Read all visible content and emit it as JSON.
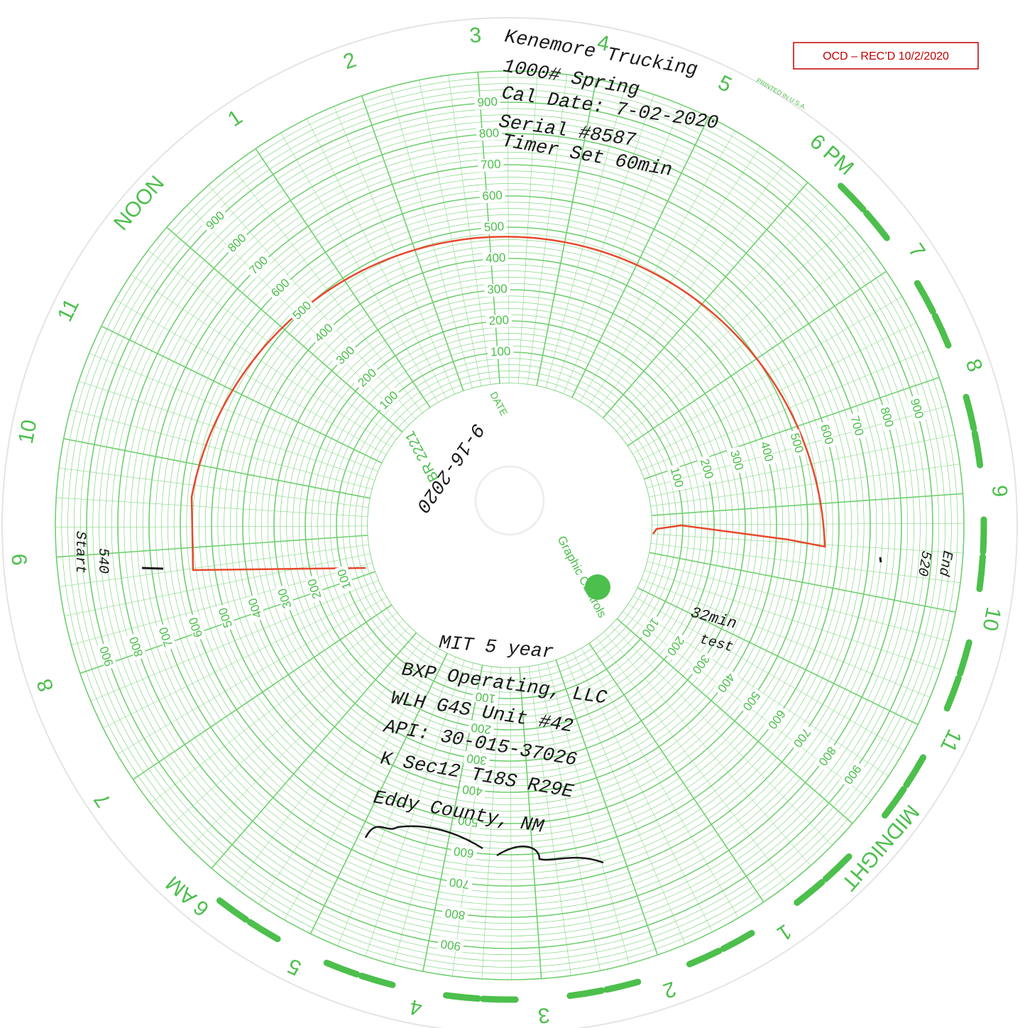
{
  "stamp": "OCD – REC’D 10/2/2020",
  "chart_paper": {
    "hour_labels": [
      "MIDNIGHT",
      "1",
      "2",
      "3",
      "4",
      "5",
      "6 AM",
      "7",
      "8",
      "9",
      "10",
      "11",
      "NOON",
      "1",
      "2",
      "3",
      "4",
      "5",
      "6 PM",
      "7",
      "8",
      "9",
      "10",
      "11"
    ],
    "scale_labels": [
      "100",
      "200",
      "300",
      "400",
      "500",
      "600",
      "700",
      "800",
      "900"
    ],
    "printed_in": "PRINTED IN U.S.A.",
    "chart_number": "BR 2221",
    "date_label": "DATE",
    "brand": "Graphic Controls"
  },
  "header_notes": [
    "Kenemore Trucking",
    "1000# Spring",
    "Cal Date: 7-02-2020",
    "Serial #8587",
    "Timer Set 60min"
  ],
  "date_entry": "9-16-2020",
  "start_note": [
    "Start",
    "540"
  ],
  "end_note": [
    "End",
    "520"
  ],
  "test_note": [
    "32min",
    "test"
  ],
  "well_notes": [
    "MIT 5 year",
    "BXP Operating, LLC",
    "WLH G4S Unit #42",
    "API: 30-015-37026",
    "K Sec12 T18S R29E",
    "Eddy County, NM"
  ]
}
